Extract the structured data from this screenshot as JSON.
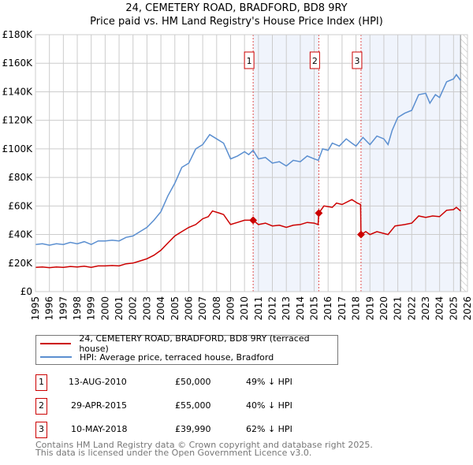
{
  "title": "24, CEMETERY ROAD, BRADFORD, BD8 9RY",
  "subtitle": "Price paid vs. HM Land Registry's House Price Index (HPI)",
  "chart_data": {
    "type": "line",
    "title": "24, CEMETERY ROAD, BRADFORD, BD8 9RY — Price paid vs. HM Land Registry's House Price Index (HPI)",
    "xlim": [
      1995,
      2026
    ],
    "ylim": [
      0,
      180000
    ],
    "x_ticks": [
      "1995",
      "1996",
      "1997",
      "1998",
      "1999",
      "2000",
      "2001",
      "2002",
      "2003",
      "2004",
      "2005",
      "2006",
      "2007",
      "2008",
      "2009",
      "2010",
      "2011",
      "2012",
      "2013",
      "2014",
      "2015",
      "2016",
      "2017",
      "2018",
      "2019",
      "2020",
      "2021",
      "2022",
      "2023",
      "2024",
      "2025",
      "2026"
    ],
    "y_ticks": [
      {
        "v": 0,
        "label": "£0"
      },
      {
        "v": 20000,
        "label": "£20K"
      },
      {
        "v": 40000,
        "label": "£40K"
      },
      {
        "v": 60000,
        "label": "£60K"
      },
      {
        "v": 80000,
        "label": "£80K"
      },
      {
        "v": 100000,
        "label": "£100K"
      },
      {
        "v": 120000,
        "label": "£120K"
      },
      {
        "v": 140000,
        "label": "£140K"
      },
      {
        "v": 160000,
        "label": "£160K"
      },
      {
        "v": 180000,
        "label": "£180K"
      }
    ],
    "grid": true,
    "series": [
      {
        "name": "24, CEMETERY ROAD, BRADFORD, BD8 9RY (terraced house)",
        "color": "#cc0000",
        "x": [
          1995,
          1995.5,
          1996,
          1996.5,
          1997,
          1997.5,
          1998,
          1998.5,
          1999,
          1999.5,
          2000,
          2000.5,
          2001,
          2001.5,
          2002,
          2002.5,
          2003,
          2003.5,
          2004,
          2004.5,
          2005,
          2005.5,
          2006,
          2006.5,
          2007,
          2007.4,
          2007.7,
          2008.2,
          2008.5,
          2009,
          2009.5,
          2010,
          2010.62,
          2011,
          2011.5,
          2012,
          2012.5,
          2013,
          2013.5,
          2014,
          2014.5,
          2015,
          2015.28,
          2015.33,
          2015.7,
          2016.3,
          2016.6,
          2017,
          2017.7,
          2018.1,
          2018.33,
          2018.36,
          2018.7,
          2019,
          2019.5,
          2020.3,
          2020.8,
          2021.5,
          2022,
          2022.5,
          2023,
          2023.5,
          2024,
          2024.5,
          2025,
          2025.2,
          2025.5
        ],
        "y": [
          17000,
          17200,
          16800,
          17300,
          17000,
          17600,
          17200,
          17800,
          17000,
          18000,
          18000,
          18300,
          18000,
          19500,
          20000,
          21500,
          23000,
          25500,
          29000,
          34000,
          39000,
          42000,
          45000,
          47000,
          51000,
          52500,
          56500,
          55000,
          54000,
          47000,
          48500,
          50000,
          50000,
          47000,
          48000,
          46000,
          46500,
          45000,
          46500,
          47000,
          48500,
          48000,
          47000,
          55000,
          60000,
          59000,
          62000,
          61000,
          64500,
          62000,
          61000,
          39990,
          42000,
          40000,
          42000,
          40000,
          46000,
          47000,
          48000,
          53000,
          52000,
          53000,
          52500,
          57000,
          57500,
          59000,
          56500
        ]
      },
      {
        "name": "HPI: Average price, terraced house, Bradford",
        "color": "#5b8fd0",
        "x": [
          1995,
          1995.5,
          1996,
          1996.5,
          1997,
          1997.5,
          1998,
          1998.5,
          1999,
          1999.5,
          2000,
          2000.5,
          2001,
          2001.5,
          2002,
          2002.5,
          2003,
          2003.5,
          2004,
          2004.5,
          2005,
          2005.5,
          2006,
          2006.5,
          2007,
          2007.5,
          2008,
          2008.5,
          2009,
          2009.5,
          2010,
          2010.3,
          2010.62,
          2011,
          2011.5,
          2012,
          2012.5,
          2013,
          2013.5,
          2014,
          2014.5,
          2015,
          2015.3,
          2015.6,
          2016,
          2016.3,
          2016.8,
          2017.3,
          2017.7,
          2018,
          2018.5,
          2019,
          2019.5,
          2020,
          2020.3,
          2020.6,
          2021,
          2021.5,
          2022,
          2022.5,
          2023,
          2023.3,
          2023.7,
          2024,
          2024.5,
          2025,
          2025.2,
          2025.5
        ],
        "y": [
          33000,
          33500,
          32500,
          33500,
          33000,
          34500,
          33500,
          35000,
          33000,
          35500,
          35500,
          36000,
          35500,
          38000,
          39000,
          42000,
          45000,
          50000,
          56000,
          67000,
          76000,
          87000,
          90000,
          100000,
          103000,
          110000,
          107000,
          104000,
          93000,
          95000,
          98000,
          96000,
          99000,
          93000,
          94000,
          90000,
          91000,
          88000,
          92000,
          91000,
          95000,
          93000,
          92000,
          100000,
          99000,
          104000,
          102000,
          107000,
          104000,
          102000,
          108000,
          103000,
          109000,
          107000,
          103000,
          113000,
          122000,
          125000,
          127000,
          138000,
          139000,
          132000,
          138000,
          136000,
          147000,
          149000,
          152000,
          148000
        ]
      }
    ],
    "sales": [
      {
        "label": "1",
        "x": 2010.62,
        "y": 50000,
        "date": "13-AUG-2010",
        "price": "£50,000",
        "hpi": "49% ↓ HPI"
      },
      {
        "label": "2",
        "x": 2015.33,
        "y": 55000,
        "date": "29-APR-2015",
        "price": "£55,000",
        "hpi": "40% ↓ HPI"
      },
      {
        "label": "3",
        "x": 2018.36,
        "y": 39990,
        "date": "10-MAY-2018",
        "price": "£39,990",
        "hpi": "62% ↓ HPI"
      }
    ],
    "shaded_ranges": [
      [
        2010.62,
        2015.33
      ],
      [
        2018.36,
        2025.5
      ]
    ],
    "forecast_from": 2025.5
  },
  "legend": {
    "property": "24, CEMETERY ROAD, BRADFORD, BD8 9RY (terraced house)",
    "hpi": "HPI: Average price, terraced house, Bradford"
  },
  "footer": {
    "line1": "Contains HM Land Registry data © Crown copyright and database right 2025.",
    "line2": "This data is licensed under the Open Government Licence v3.0."
  }
}
